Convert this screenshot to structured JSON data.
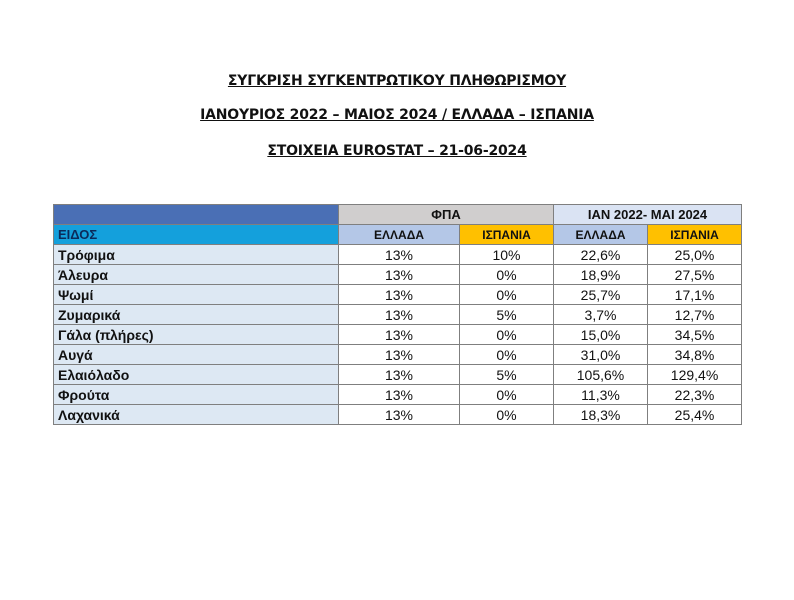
{
  "titles": [
    "ΣΥΓΚΡΙΣΗ ΣΥΓΚΕΝΤΡΩΤΙΚΟΥ ΠΛΗΘΩΡΙΣΜΟΥ",
    "ΙΑΝΟΥΡΙΟΣ 2022 – ΜΑΙΟΣ 2024 / ΕΛΛΑΔΑ – ΙΣΠΑΝΙΑ",
    "ΣΤΟΙΧΕΙΑ EUROSTAT – 21-06-2024"
  ],
  "table": {
    "group_headers": {
      "vat": "ΦΠΑ",
      "period": "ΙΑΝ 2022- ΜΑΙ 2024"
    },
    "sub_headers": {
      "item": "ΕΙΔΟΣ",
      "vat_gr": "ΕΛΛΑΔΑ",
      "vat_es": "ΙΣΠΑΝΙΑ",
      "inf_gr": "ΕΛΛΑΔΑ",
      "inf_es": "ΙΣΠΑΝΙΑ"
    },
    "rows": [
      [
        "Τρόφιμα",
        "13%",
        "10%",
        "22,6%",
        "25,0%"
      ],
      [
        "Άλευρα",
        "13%",
        "0%",
        "18,9%",
        "27,5%"
      ],
      [
        "Ψωμί",
        "13%",
        "0%",
        "25,7%",
        "17,1%"
      ],
      [
        "Ζυμαρικά",
        "13%",
        "5%",
        "3,7%",
        "12,7%"
      ],
      [
        "Γάλα (πλήρες)",
        "13%",
        "0%",
        "15,0%",
        "34,5%"
      ],
      [
        "Αυγά",
        "13%",
        "0%",
        "31,0%",
        "34,8%"
      ],
      [
        "Ελαιόλαδο",
        "13%",
        "5%",
        "105,6%",
        "129,4%"
      ],
      [
        "Φρούτα",
        "13%",
        "0%",
        "11,3%",
        "22,3%"
      ],
      [
        "Λαχανικά",
        "13%",
        "0%",
        "18,3%",
        "25,4%"
      ]
    ]
  },
  "colors": {
    "header_blue": "#4a6fb5",
    "item_header": "#14a0dc",
    "greece": "#b4c7e7",
    "spain": "#ffc000"
  }
}
